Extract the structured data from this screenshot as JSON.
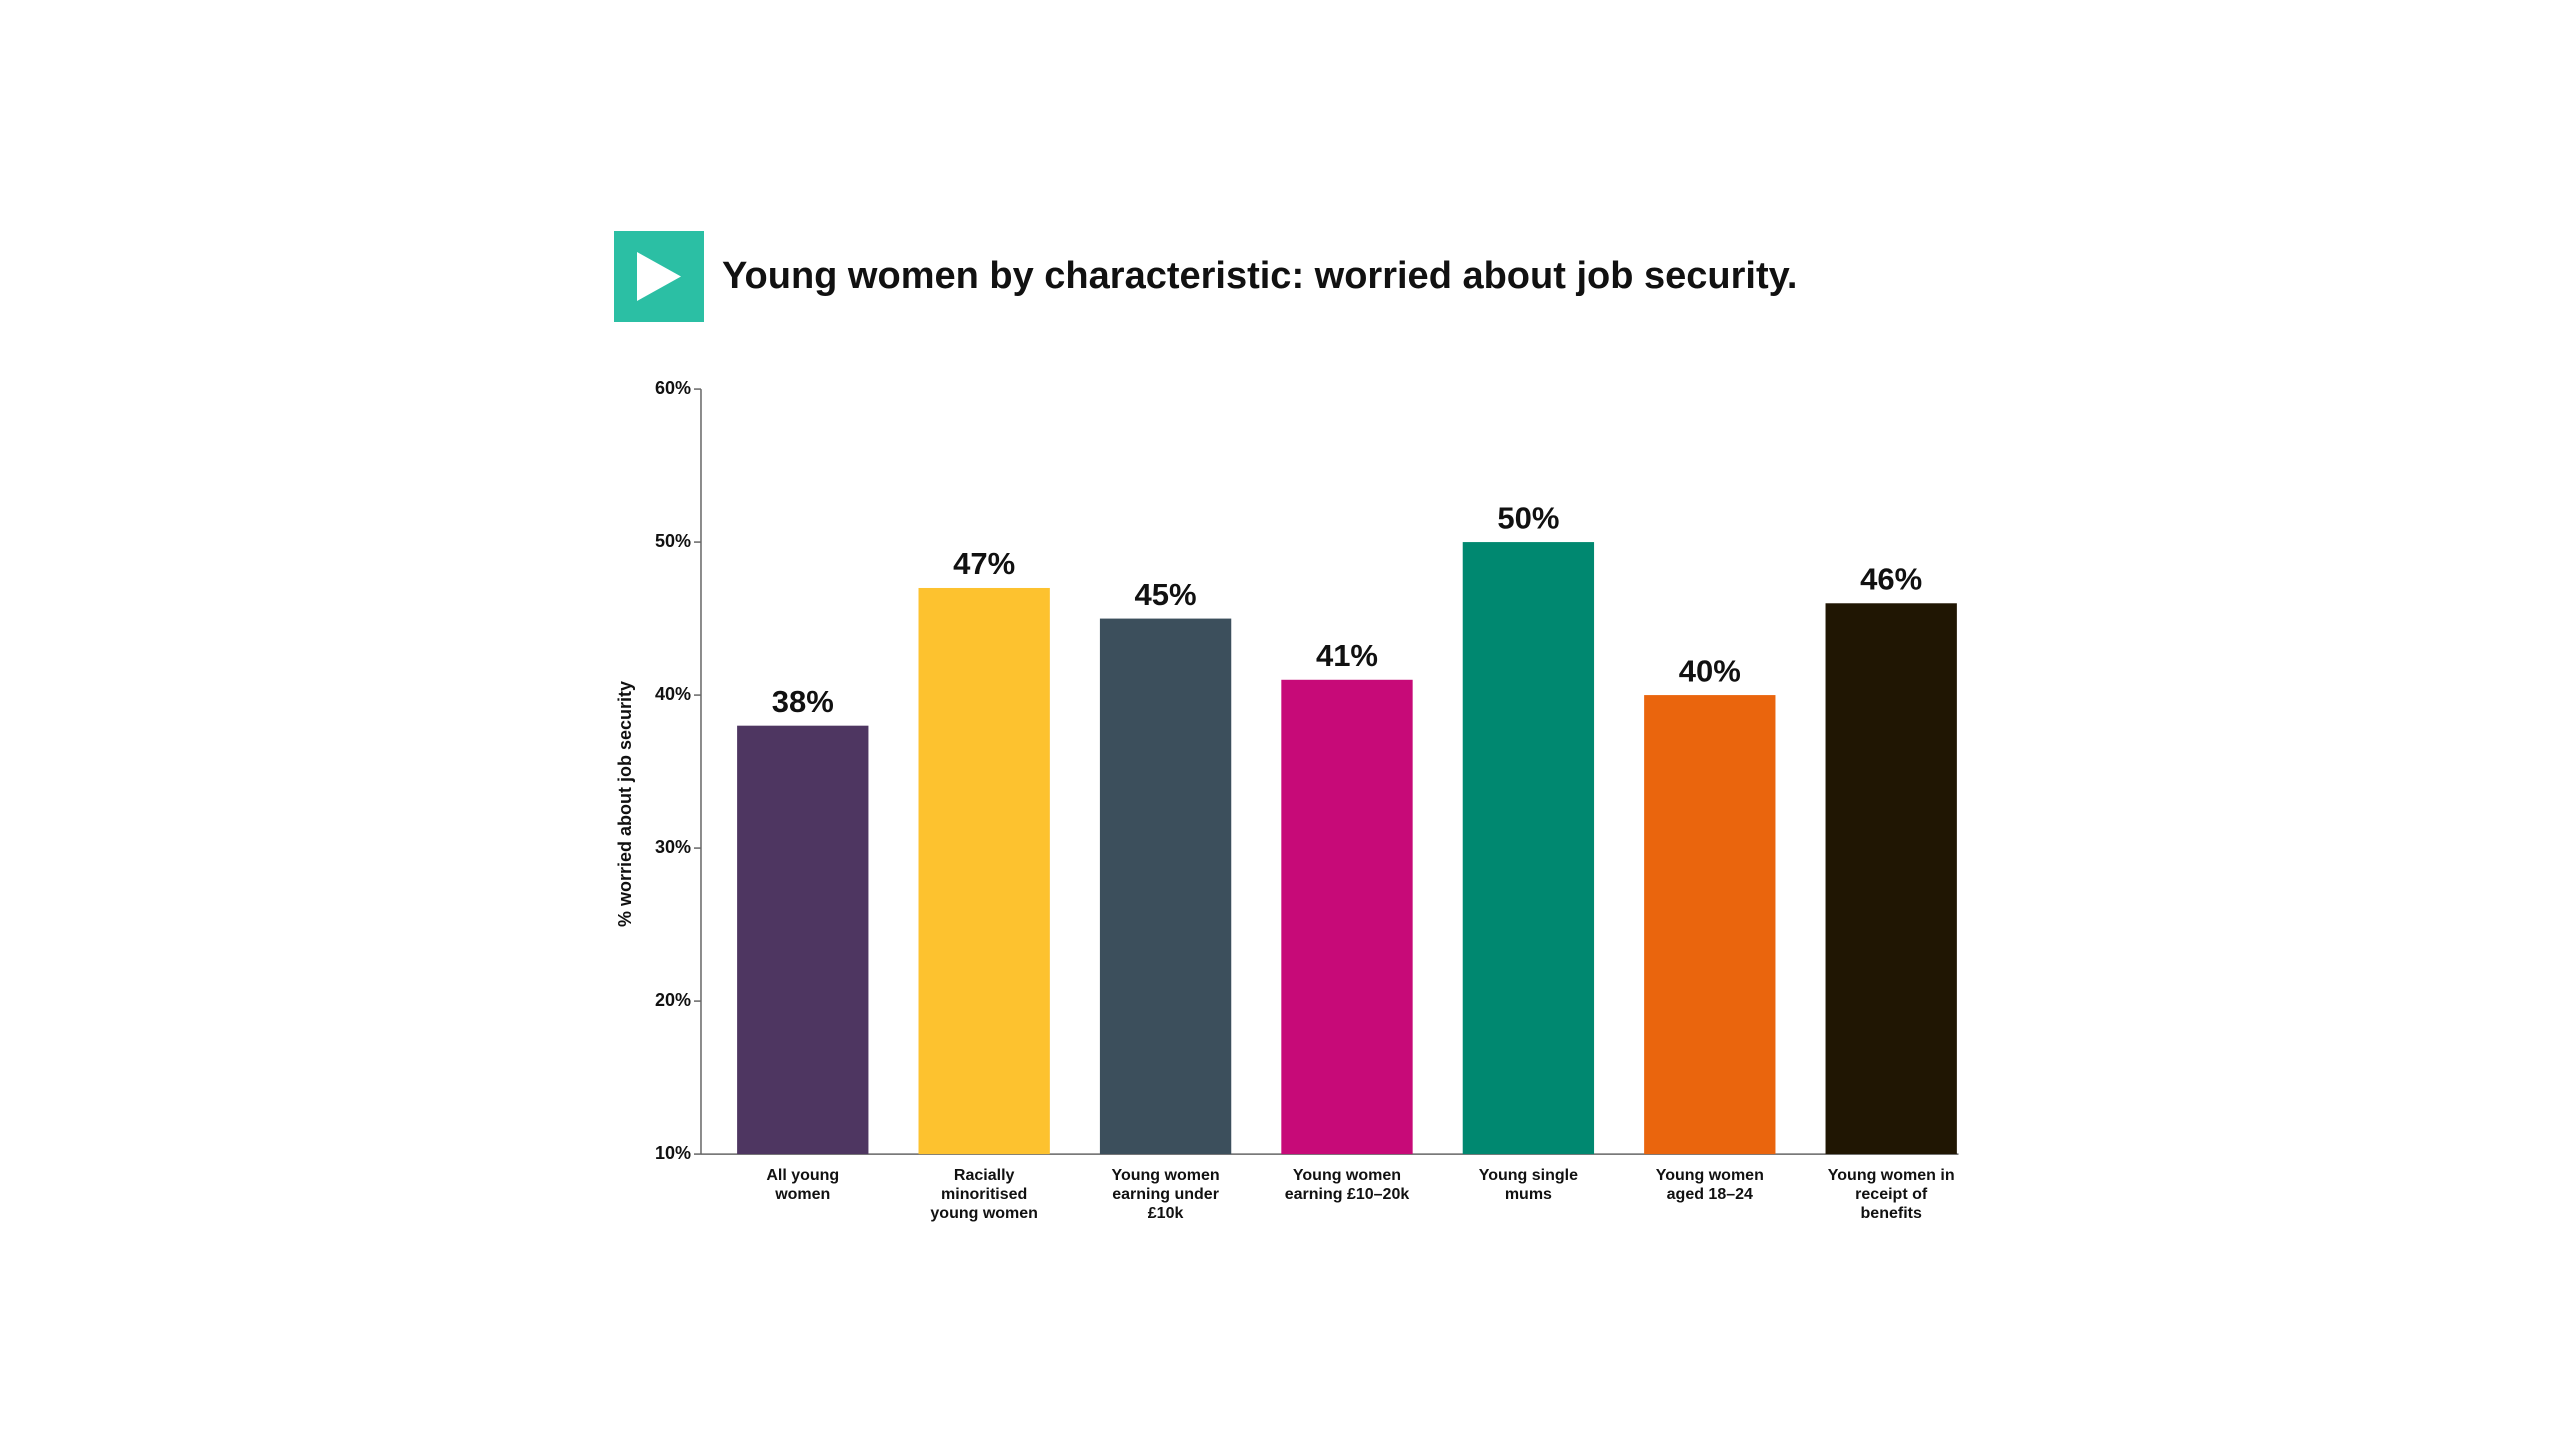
{
  "chart_data": {
    "type": "bar",
    "title": "Young women by characteristic: worried about job security.",
    "y_label": "% worried about job security",
    "categories": [
      "All young women",
      "Racially minoritised young women",
      "Young women earning under £10k",
      "Young women earning £10–20k",
      "Young single mums",
      "Young women aged 18–24",
      "Young women in receipt of benefits"
    ],
    "values": [
      38,
      47,
      45,
      41,
      50,
      40,
      46
    ],
    "value_labels": [
      "38%",
      "47%",
      "45%",
      "41%",
      "50%",
      "40%",
      "46%"
    ],
    "colors": [
      "#4e3661",
      "#fdc22f",
      "#3c4f5c",
      "#c70a78",
      "#008870",
      "#ea650d",
      "#201603"
    ],
    "ylim": [
      10,
      60
    ],
    "yticks": [
      {
        "value": 10,
        "label": "10%"
      },
      {
        "value": 20,
        "label": "20%"
      },
      {
        "value": 30,
        "label": "30%"
      },
      {
        "value": 40,
        "label": "40%"
      },
      {
        "value": 50,
        "label": "50%"
      },
      {
        "value": 60,
        "label": "60%"
      }
    ],
    "grid": false
  }
}
